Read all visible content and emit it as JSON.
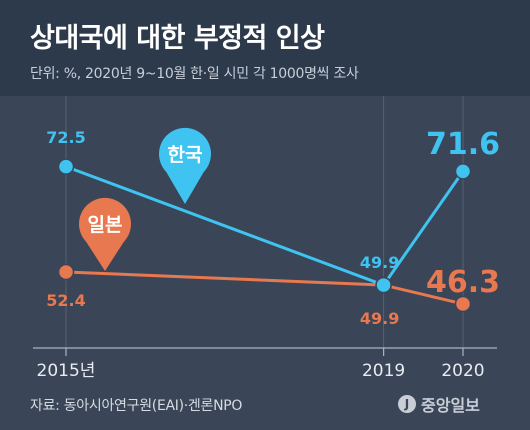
{
  "header": {
    "title": "상대국에 대한 부정적 인상",
    "subtitle": "단위: %, 2020년 9~10월 한·일 시민 각 1000명씩 조사"
  },
  "footer": {
    "source": "자료: 동아시아연구원(EAI)·겐론NPO",
    "logo_text": "중앙일보"
  },
  "colors": {
    "korea": "#3fc3f0",
    "japan": "#e8784f",
    "background": "#3a4658",
    "header": "#2d3a4b"
  },
  "chart_data": {
    "type": "line",
    "title": "상대국에 대한 부정적 인상",
    "subtitle": "단위: %, 2020년 9~10월 한·일 시민 각 1000명씩 조사",
    "x": [
      "2015년",
      "2019",
      "2020"
    ],
    "x_values": [
      2015,
      2019,
      2020
    ],
    "series": [
      {
        "name": "한국",
        "values": [
          72.5,
          49.9,
          71.6
        ],
        "labels": [
          "72.5",
          "49.9",
          "71.6"
        ],
        "color": "#3fc3f0"
      },
      {
        "name": "일본",
        "values": [
          52.4,
          49.9,
          46.3
        ],
        "labels": [
          "52.4",
          "49.9",
          "46.3"
        ],
        "color": "#e8784f"
      }
    ],
    "ylim": [
      40,
      75
    ],
    "grid": true,
    "legend": "callout-pins"
  }
}
